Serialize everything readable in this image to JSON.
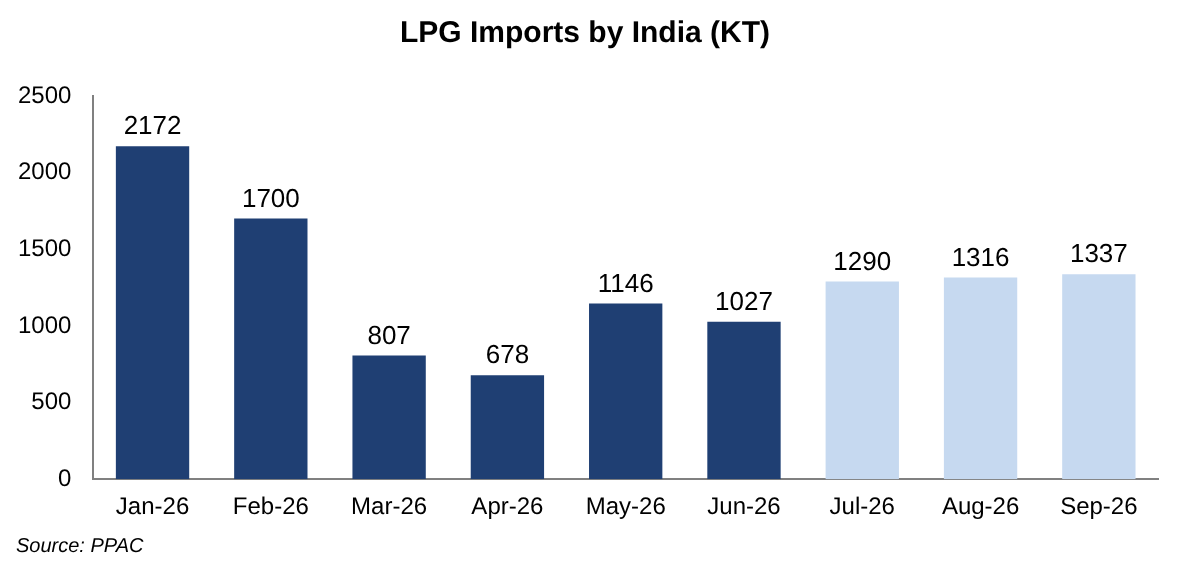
{
  "chart_data": {
    "type": "bar",
    "title": "LPG Imports by India (KT)",
    "categories": [
      "Jan-26",
      "Feb-26",
      "Mar-26",
      "Apr-26",
      "May-26",
      "Jun-26",
      "Jul-26",
      "Aug-26",
      "Sep-26"
    ],
    "values": [
      2172,
      1700,
      807,
      678,
      1146,
      1027,
      1290,
      1316,
      1337
    ],
    "colors": [
      "#1f3f73",
      "#1f3f73",
      "#1f3f73",
      "#1f3f73",
      "#1f3f73",
      "#1f3f73",
      "#c6d9f0",
      "#c6d9f0",
      "#c6d9f0"
    ],
    "ylim": [
      0,
      2500
    ],
    "yticks": [
      0,
      500,
      1000,
      1500,
      2000,
      2500
    ],
    "grid": false,
    "data_labels": true,
    "legend": false,
    "annotations": [
      "Source: PPAC"
    ]
  }
}
